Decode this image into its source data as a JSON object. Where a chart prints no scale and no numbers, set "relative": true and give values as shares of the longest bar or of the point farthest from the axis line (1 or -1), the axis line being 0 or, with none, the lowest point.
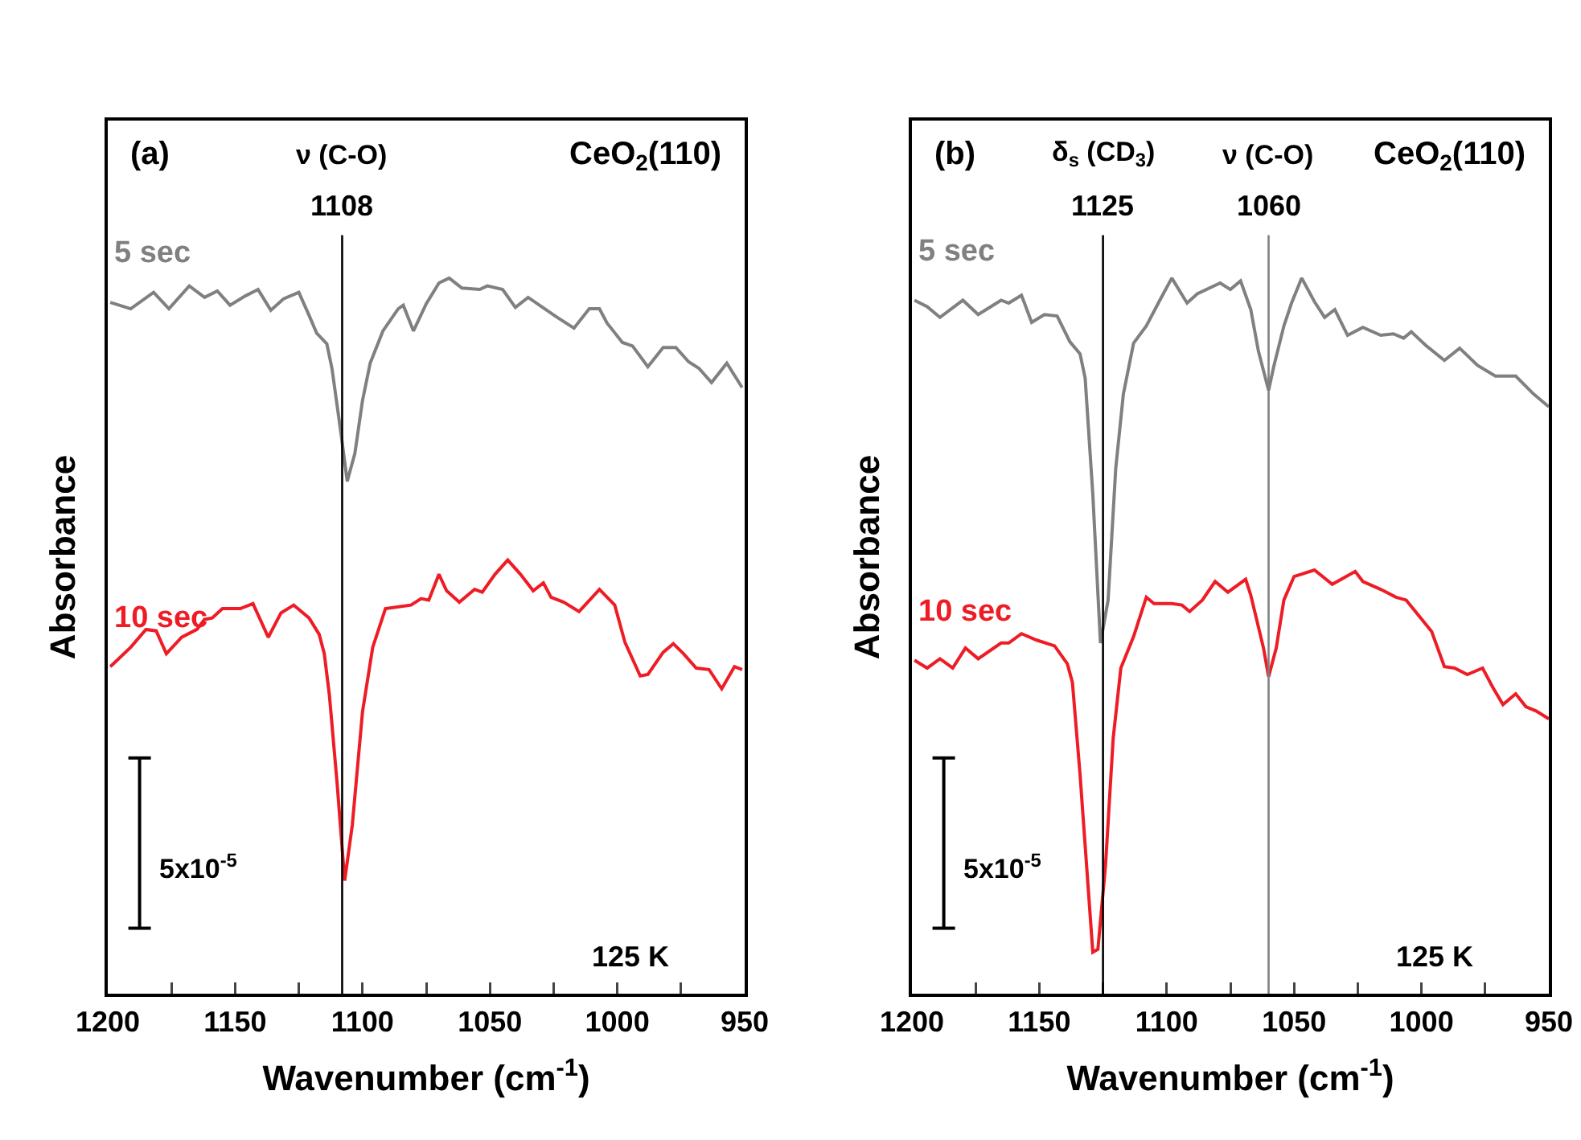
{
  "chart_data": [
    {
      "type": "line",
      "relative": true,
      "xlabel": "Wavenumber (cm$^{-1}$)",
      "ylabel": "Absorbance",
      "xlim": [
        1200,
        950
      ],
      "xticks": [
        1200,
        {
          "value": 1175,
          "label": null
        },
        1150,
        {
          "value": 1125,
          "label": null
        },
        1100,
        {
          "value": 1075,
          "label": null
        },
        1050,
        {
          "value": 1025,
          "label": null
        },
        1000,
        {
          "value": 975,
          "label": null
        },
        950
      ],
      "legend": false,
      "grid": false,
      "series": [
        {
          "name": "5 sec",
          "color": "#808080",
          "x": [
            1199,
            1191,
            1182,
            1176,
            1168,
            1162,
            1157,
            1152,
            1146,
            1141,
            1136,
            1131,
            1125,
            1121,
            1118,
            1114,
            1112,
            1108.5,
            1106,
            1103,
            1100,
            1097,
            1092,
            1086,
            1084,
            1080,
            1075,
            1070,
            1066,
            1061,
            1054,
            1051,
            1045,
            1040,
            1035,
            1024,
            1017,
            1011,
            1007,
            1004,
            998,
            994,
            988,
            982,
            977,
            972,
            968,
            963,
            957,
            951
          ],
          "values": [
            0.966,
            0.957,
            0.98,
            0.957,
            0.989,
            0.973,
            0.982,
            0.962,
            0.975,
            0.984,
            0.955,
            0.971,
            0.98,
            0.948,
            0.923,
            0.908,
            0.874,
            0.784,
            0.716,
            0.755,
            0.829,
            0.881,
            0.926,
            0.957,
            0.962,
            0.926,
            0.964,
            0.993,
            1.0,
            0.986,
            0.984,
            0.989,
            0.984,
            0.959,
            0.973,
            0.946,
            0.93,
            0.957,
            0.957,
            0.937,
            0.91,
            0.905,
            0.876,
            0.903,
            0.903,
            0.883,
            0.874,
            0.854,
            0.881,
            0.847
          ]
        },
        {
          "name": "10 sec",
          "color": "#ee1c25",
          "x": [
            1199,
            1191,
            1185,
            1181,
            1177,
            1171,
            1165,
            1162,
            1159,
            1155,
            1148,
            1143,
            1137,
            1132,
            1127,
            1121,
            1117,
            1115,
            1113,
            1110,
            1107,
            1104,
            1100,
            1096,
            1091,
            1081,
            1077,
            1074,
            1070,
            1067,
            1062,
            1056,
            1053,
            1048,
            1043,
            1038,
            1033,
            1029,
            1026,
            1021,
            1015,
            1007,
            1001,
            997,
            991,
            988,
            982,
            978,
            974,
            969,
            964,
            959,
            954,
            951
          ],
          "values": [
            0.457,
            0.484,
            0.509,
            0.507,
            0.475,
            0.498,
            0.509,
            0.523,
            0.525,
            0.538,
            0.538,
            0.545,
            0.498,
            0.532,
            0.543,
            0.525,
            0.502,
            0.475,
            0.417,
            0.295,
            0.158,
            0.236,
            0.394,
            0.484,
            0.538,
            0.543,
            0.552,
            0.55,
            0.586,
            0.563,
            0.547,
            0.565,
            0.561,
            0.586,
            0.606,
            0.586,
            0.563,
            0.574,
            0.554,
            0.547,
            0.534,
            0.565,
            0.543,
            0.491,
            0.444,
            0.446,
            0.477,
            0.489,
            0.475,
            0.455,
            0.453,
            0.426,
            0.457,
            0.453
          ]
        }
      ],
      "ref_lines": [
        {
          "axis": "x",
          "value": 1108,
          "label": "1108",
          "color": "#000000"
        }
      ],
      "annotations": [
        "(a)",
        "CeO$_{2}$(110)",
        "125 K",
        "5x10$^{-5}$",
        "ν (C-O)"
      ]
    },
    {
      "type": "line",
      "relative": true,
      "xlabel": "Wavenumber (cm$^{-1}$)",
      "ylabel": "Absorbance",
      "xlim": [
        1200,
        950
      ],
      "xticks": [
        1200,
        {
          "value": 1175,
          "label": null
        },
        1150,
        {
          "value": 1125,
          "label": null
        },
        1100,
        {
          "value": 1075,
          "label": null
        },
        1050,
        {
          "value": 1025,
          "label": null
        },
        1000,
        {
          "value": 975,
          "label": null
        },
        950
      ],
      "legend": false,
      "grid": false,
      "series": [
        {
          "name": "5 sec",
          "color": "#808080",
          "x": [
            1199,
            1194,
            1189,
            1180,
            1174,
            1165,
            1162,
            1157,
            1153,
            1148,
            1143,
            1138,
            1134,
            1132,
            1129,
            1126,
            1123,
            1120,
            1117,
            1113,
            1108,
            1103,
            1098,
            1092,
            1088,
            1079,
            1075,
            1071,
            1067,
            1064,
            1060,
            1058,
            1054,
            1051,
            1047,
            1042,
            1038,
            1034,
            1029,
            1023,
            1016,
            1011,
            1007,
            1004,
            998,
            991,
            985,
            978,
            971,
            963,
            956,
            950
          ],
          "values": [
            0.969,
            0.96,
            0.945,
            0.969,
            0.949,
            0.969,
            0.965,
            0.976,
            0.938,
            0.949,
            0.947,
            0.911,
            0.894,
            0.86,
            0.698,
            0.49,
            0.55,
            0.734,
            0.838,
            0.909,
            0.933,
            0.967,
            1.0,
            0.965,
            0.978,
            0.993,
            0.984,
            0.996,
            0.956,
            0.898,
            0.843,
            0.876,
            0.933,
            0.965,
            1.0,
            0.967,
            0.945,
            0.956,
            0.92,
            0.931,
            0.92,
            0.922,
            0.916,
            0.925,
            0.905,
            0.885,
            0.902,
            0.878,
            0.863,
            0.863,
            0.838,
            0.82
          ]
        },
        {
          "name": "10 sec",
          "color": "#ee1c25",
          "x": [
            1199,
            1194,
            1189,
            1184,
            1179,
            1174,
            1165,
            1162,
            1157,
            1151,
            1144,
            1139,
            1137,
            1134,
            1131,
            1129,
            1127,
            1124,
            1121,
            1118,
            1113,
            1108,
            1105,
            1098,
            1094,
            1091,
            1086,
            1081,
            1076,
            1069,
            1067,
            1062,
            1060,
            1057,
            1054,
            1050,
            1042,
            1035,
            1026,
            1023,
            1016,
            1010,
            1006,
            1001,
            996,
            991,
            987,
            982,
            976,
            972,
            968,
            963,
            959,
            955,
            950
          ],
          "values": [
            0.466,
            0.455,
            0.468,
            0.455,
            0.483,
            0.468,
            0.49,
            0.49,
            0.503,
            0.494,
            0.486,
            0.461,
            0.435,
            0.306,
            0.157,
            0.058,
            0.062,
            0.18,
            0.357,
            0.455,
            0.499,
            0.554,
            0.545,
            0.545,
            0.543,
            0.534,
            0.55,
            0.576,
            0.561,
            0.579,
            0.557,
            0.483,
            0.443,
            0.483,
            0.55,
            0.583,
            0.592,
            0.572,
            0.59,
            0.576,
            0.565,
            0.554,
            0.55,
            0.528,
            0.506,
            0.457,
            0.455,
            0.446,
            0.455,
            0.428,
            0.404,
            0.419,
            0.401,
            0.395,
            0.384
          ]
        }
      ],
      "ref_lines": [
        {
          "axis": "x",
          "value": 1125,
          "label": "1125",
          "color": "#000000"
        },
        {
          "axis": "x",
          "value": 1060,
          "label": "1060",
          "color": "#808080"
        }
      ],
      "annotations": [
        "(b)",
        "CeO$_{2}$(110)",
        "125 K",
        "5x10$^{-5}$",
        "δ$_{s}$ (CD$_{3}$)",
        "ν (C-O)"
      ]
    }
  ]
}
